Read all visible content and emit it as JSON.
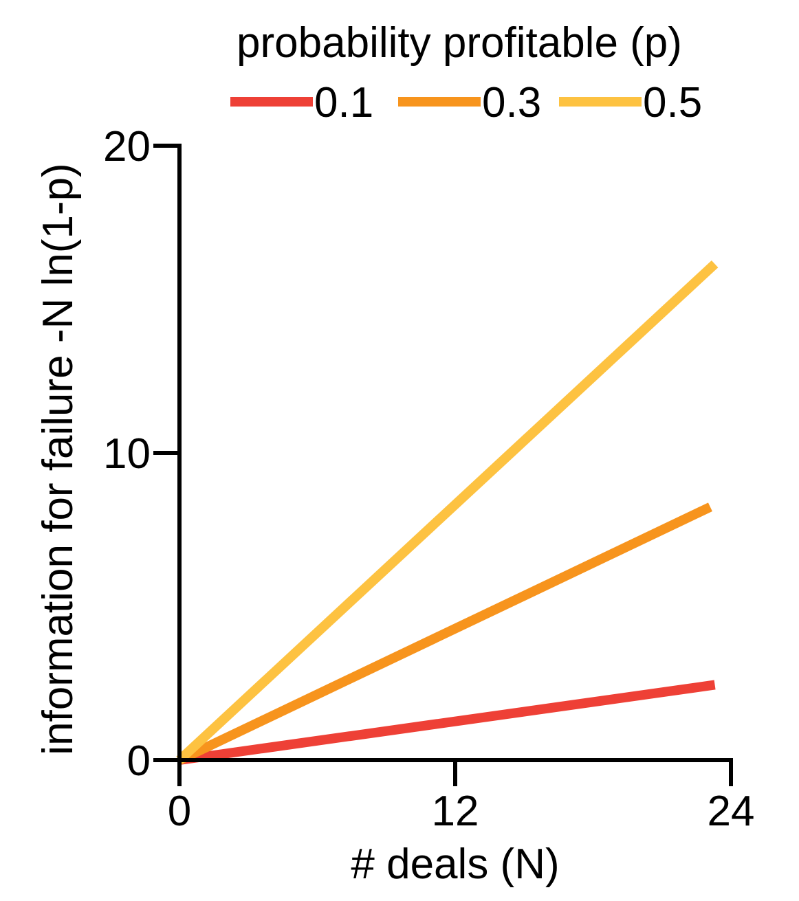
{
  "chart_data": {
    "type": "line",
    "title": "",
    "xlabel": "# deals (N)",
    "ylabel": "information for failure -N ln(1-p)",
    "xlim": [
      0,
      24
    ],
    "ylim": [
      0,
      20
    ],
    "x_ticks": [
      0,
      12,
      24
    ],
    "y_ticks": [
      0,
      10,
      20
    ],
    "x_tick_labels": [
      "0",
      "12",
      "24"
    ],
    "y_tick_labels": [
      "0",
      "10",
      "20"
    ],
    "grid": false,
    "legend": {
      "title": "probability profitable (p)",
      "placement": "top",
      "orientation": "horizontal"
    },
    "series": [
      {
        "name": "0.1",
        "color": "#EE4036",
        "x": [
          0,
          23.3
        ],
        "y": [
          0,
          2.45
        ]
      },
      {
        "name": "0.3",
        "color": "#F7941D",
        "x": [
          0,
          23.1
        ],
        "y": [
          0,
          8.24
        ]
      },
      {
        "name": "0.5",
        "color": "#FDC241",
        "x": [
          0,
          23.3
        ],
        "y": [
          0,
          16.15
        ]
      }
    ]
  }
}
